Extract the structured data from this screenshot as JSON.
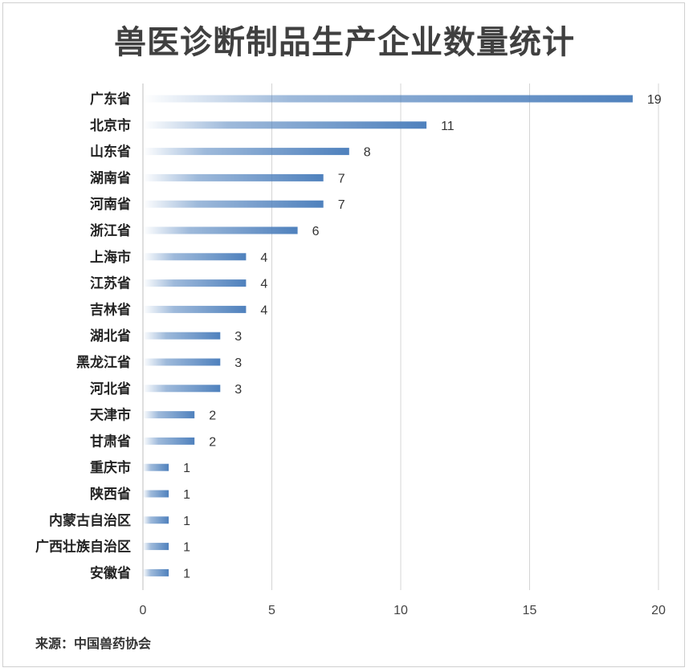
{
  "chart_data": {
    "type": "bar",
    "orientation": "horizontal",
    "title": "兽医诊断制品生产企业数量统计",
    "source": "来源：中国兽药协会",
    "categories": [
      "广东省",
      "北京市",
      "山东省",
      "湖南省",
      "河南省",
      "浙江省",
      "上海市",
      "江苏省",
      "吉林省",
      "湖北省",
      "黑龙江省",
      "河北省",
      "天津市",
      "甘肃省",
      "重庆市",
      "陕西省",
      "内蒙古自治区",
      "广西壮族自治区",
      "安徽省"
    ],
    "values": [
      19,
      11,
      8,
      7,
      7,
      6,
      4,
      4,
      4,
      3,
      3,
      3,
      2,
      2,
      1,
      1,
      1,
      1,
      1
    ],
    "xlim": [
      0,
      20
    ],
    "xticks": [
      0,
      5,
      10,
      15,
      20
    ],
    "grid": true,
    "data_labels": true,
    "bar_color": "#4f81bd"
  }
}
